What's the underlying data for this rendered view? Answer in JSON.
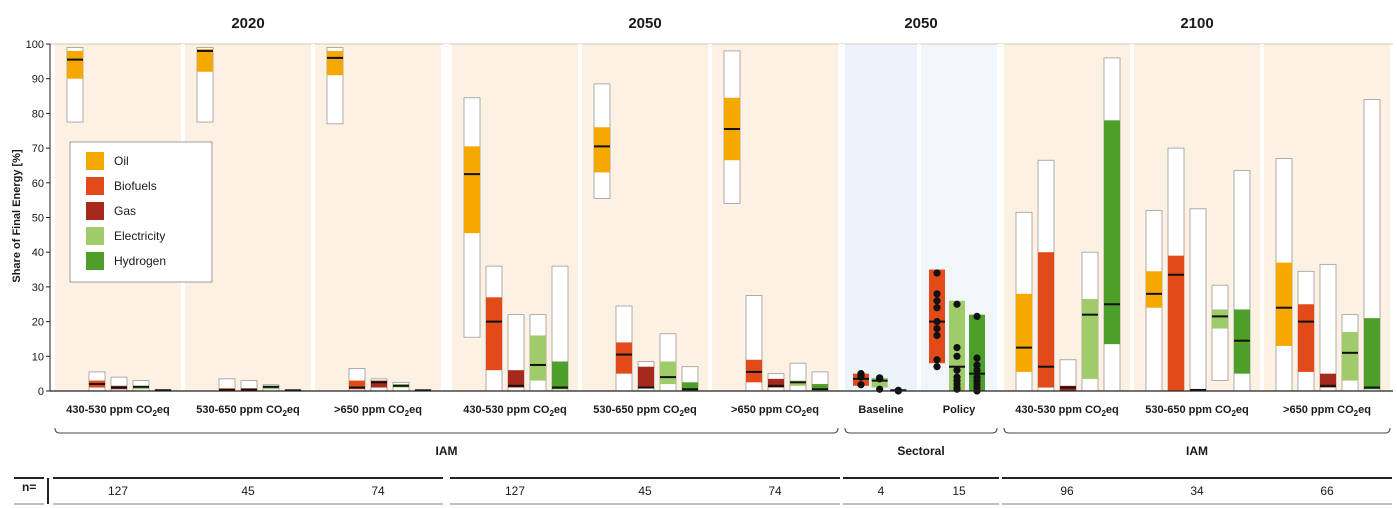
{
  "chart_data": {
    "type": "bar",
    "ylabel": "Share of Final Energy [%]",
    "ylim": [
      0,
      100
    ],
    "yticks": [
      0,
      10,
      20,
      30,
      40,
      50,
      60,
      70,
      80,
      90,
      100
    ],
    "grid": false,
    "legend": {
      "placement": "left",
      "entries": [
        {
          "name": "Oil",
          "color": "#f5a800"
        },
        {
          "name": "Biofuels",
          "color": "#e24a1a"
        },
        {
          "name": "Gas",
          "color": "#a52a1c"
        },
        {
          "name": "Electricity",
          "color": "#9fcb6b"
        },
        {
          "name": "Hydrogen",
          "color": "#4e9e2a"
        }
      ]
    },
    "year_labels": [
      "2020",
      "2050",
      "2050",
      "2100"
    ],
    "group_labels": [
      "IAM",
      "Sectoral",
      "IAM"
    ],
    "n_label": "n=",
    "panels": [
      {
        "label": "430-530 ppm CO2eq",
        "label_main": "430-530 ppm CO",
        "label_sub": "2",
        "label_tail": "eq",
        "n": "127",
        "bars": [
          {
            "carrier": "Oil",
            "min": 77.5,
            "q1": 90,
            "median": 95.5,
            "q3": 98,
            "max": 99
          },
          {
            "carrier": "Biofuels",
            "min": 0,
            "q1": 1,
            "median": 2,
            "q3": 3,
            "max": 5.5
          },
          {
            "carrier": "Gas",
            "min": 0,
            "q1": 0.5,
            "median": 1,
            "q3": 1.5,
            "max": 4
          },
          {
            "carrier": "Electricity",
            "min": 0,
            "q1": 0.5,
            "median": 1.2,
            "q3": 1.5,
            "max": 3
          },
          {
            "carrier": "Hydrogen",
            "min": 0,
            "q1": 0,
            "median": 0.2,
            "q3": 0.4,
            "max": 0.4
          }
        ]
      },
      {
        "label": "530-650 ppm CO2eq",
        "label_main": "530-650 ppm CO",
        "label_sub": "2",
        "label_tail": "eq",
        "n": "45",
        "bars": [
          {
            "carrier": "Oil",
            "min": 77.5,
            "q1": 92,
            "median": 98,
            "q3": 98.5,
            "max": 99
          },
          {
            "carrier": "Biofuels",
            "min": 0,
            "q1": 0,
            "median": 0.3,
            "q3": 0.8,
            "max": 3.5
          },
          {
            "carrier": "Gas",
            "min": 0,
            "q1": 0,
            "median": 0.3,
            "q3": 0.8,
            "max": 3
          },
          {
            "carrier": "Electricity",
            "min": 0,
            "q1": 0.5,
            "median": 1.2,
            "q3": 1.5,
            "max": 1.8
          },
          {
            "carrier": "Hydrogen",
            "min": 0,
            "q1": 0,
            "median": 0.2,
            "q3": 0.3,
            "max": 0.3
          }
        ]
      },
      {
        "label": ">650 ppm CO2eq",
        "label_main": ">650 ppm CO",
        "label_sub": "2",
        "label_tail": "eq",
        "n": "74",
        "bars": [
          {
            "carrier": "Oil",
            "min": 77,
            "q1": 91,
            "median": 96,
            "q3": 98,
            "max": 99
          },
          {
            "carrier": "Biofuels",
            "min": 0,
            "q1": 0.5,
            "median": 1,
            "q3": 3,
            "max": 6.5
          },
          {
            "carrier": "Gas",
            "min": 0,
            "q1": 1,
            "median": 2.5,
            "q3": 3,
            "max": 3.5
          },
          {
            "carrier": "Electricity",
            "min": 0,
            "q1": 1,
            "median": 1.5,
            "q3": 2,
            "max": 2.5
          },
          {
            "carrier": "Hydrogen",
            "min": 0,
            "q1": 0,
            "median": 0.2,
            "q3": 0.3,
            "max": 0.3
          }
        ]
      },
      {
        "label": "430-530 ppm CO2eq",
        "label_main": "430-530 ppm CO",
        "label_sub": "2",
        "label_tail": "eq",
        "n": "127",
        "bars": [
          {
            "carrier": "Oil",
            "min": 15.5,
            "q1": 45.5,
            "median": 62.5,
            "q3": 70.5,
            "max": 84.5
          },
          {
            "carrier": "Biofuels",
            "min": 0,
            "q1": 6,
            "median": 20,
            "q3": 27,
            "max": 36
          },
          {
            "carrier": "Gas",
            "min": 0,
            "q1": 1,
            "median": 1.5,
            "q3": 6,
            "max": 22
          },
          {
            "carrier": "Electricity",
            "min": 0,
            "q1": 3,
            "median": 7.5,
            "q3": 16,
            "max": 22
          },
          {
            "carrier": "Hydrogen",
            "min": 0,
            "q1": 0.5,
            "median": 1,
            "q3": 8.5,
            "max": 36
          }
        ]
      },
      {
        "label": "530-650 ppm CO2eq",
        "label_main": "530-650 ppm CO",
        "label_sub": "2",
        "label_tail": "eq",
        "n": "45",
        "bars": [
          {
            "carrier": "Oil",
            "min": 55.5,
            "q1": 63,
            "median": 70.5,
            "q3": 76,
            "max": 88.5
          },
          {
            "carrier": "Biofuels",
            "min": 0,
            "q1": 5,
            "median": 10.5,
            "q3": 14,
            "max": 24.5
          },
          {
            "carrier": "Gas",
            "min": 0,
            "q1": 1,
            "median": 1,
            "q3": 7,
            "max": 8.5
          },
          {
            "carrier": "Electricity",
            "min": 0,
            "q1": 2,
            "median": 4,
            "q3": 8.5,
            "max": 16.5
          },
          {
            "carrier": "Hydrogen",
            "min": 0,
            "q1": 0,
            "median": 0.5,
            "q3": 2.5,
            "max": 7
          }
        ]
      },
      {
        "label": ">650 ppm CO2eq",
        "label_main": ">650 ppm CO",
        "label_sub": "2",
        "label_tail": "eq",
        "n": "74",
        "bars": [
          {
            "carrier": "Oil",
            "min": 54,
            "q1": 66.5,
            "median": 75.5,
            "q3": 84.5,
            "max": 98
          },
          {
            "carrier": "Biofuels",
            "min": 0,
            "q1": 2.5,
            "median": 5.5,
            "q3": 9,
            "max": 27.5
          },
          {
            "carrier": "Gas",
            "min": 0,
            "q1": 1,
            "median": 1.5,
            "q3": 3.5,
            "max": 5
          },
          {
            "carrier": "Electricity",
            "min": 0,
            "q1": 1.5,
            "median": 2.5,
            "q3": 3,
            "max": 8
          },
          {
            "carrier": "Hydrogen",
            "min": 0,
            "q1": 0.5,
            "median": 0.5,
            "q3": 2,
            "max": 5.5
          }
        ]
      },
      {
        "label": "Baseline",
        "n": "4",
        "bars": [
          {
            "carrier": "Biofuels",
            "min": 1.5,
            "q1": 1.5,
            "median": 3.5,
            "q3": 5,
            "max": 5,
            "points": [
              5,
              4.5,
              4,
              1.8
            ]
          },
          {
            "carrier": "Electricity",
            "min": 1,
            "q1": 1,
            "median": 3,
            "q3": 3.8,
            "max": 3.8,
            "points": [
              3.8,
              3.5,
              0.5
            ]
          },
          {
            "carrier": "Hydrogen",
            "min": 0,
            "q1": 0,
            "median": 0.2,
            "q3": 0.4,
            "max": 0.4,
            "points": [
              0.2,
              0,
              0.1
            ]
          }
        ]
      },
      {
        "label": "Policy",
        "n": "15",
        "bars": [
          {
            "carrier": "Biofuels",
            "min": 8,
            "q1": 8,
            "median": 20,
            "q3": 35,
            "max": 35,
            "points": [
              34,
              28,
              26,
              24,
              20,
              18,
              16,
              9,
              7
            ]
          },
          {
            "carrier": "Electricity",
            "min": 0,
            "q1": 0,
            "median": 7,
            "q3": 26,
            "max": 26,
            "points": [
              25,
              12.5,
              10,
              6,
              4,
              3,
              2,
              1,
              0.5
            ]
          },
          {
            "carrier": "Hydrogen",
            "min": 0,
            "q1": 0,
            "median": 5,
            "q3": 22,
            "max": 22,
            "points": [
              21.5,
              9.5,
              7.5,
              6,
              4,
              3,
              2,
              1,
              0
            ]
          }
        ]
      },
      {
        "label": "430-530 ppm CO2eq",
        "label_main": "430-530 ppm CO",
        "label_sub": "2",
        "label_tail": "eq",
        "n": "96",
        "bars": [
          {
            "carrier": "Oil",
            "min": 0,
            "q1": 5.5,
            "median": 12.5,
            "q3": 28,
            "max": 51.5
          },
          {
            "carrier": "Biofuels",
            "min": 0,
            "q1": 1,
            "median": 7,
            "q3": 40,
            "max": 66.5
          },
          {
            "carrier": "Gas",
            "min": 0,
            "q1": 0,
            "median": 1,
            "q3": 1.5,
            "max": 9
          },
          {
            "carrier": "Electricity",
            "min": 0,
            "q1": 3.5,
            "median": 22,
            "q3": 26.5,
            "max": 40
          },
          {
            "carrier": "Hydrogen",
            "min": 0,
            "q1": 13.5,
            "median": 25,
            "q3": 78,
            "max": 96
          }
        ]
      },
      {
        "label": "530-650 ppm CO2eq",
        "label_main": "530-650 ppm CO",
        "label_sub": "2",
        "label_tail": "eq",
        "n": "34",
        "bars": [
          {
            "carrier": "Oil",
            "min": 0,
            "q1": 24,
            "median": 28,
            "q3": 34.5,
            "max": 52
          },
          {
            "carrier": "Biofuels",
            "min": 0,
            "q1": 0,
            "median": 33.5,
            "q3": 39,
            "max": 70
          },
          {
            "carrier": "Gas",
            "min": 0,
            "q1": 0,
            "median": 0.3,
            "q3": 0.5,
            "max": 52.5
          },
          {
            "carrier": "Electricity",
            "min": 3,
            "q1": 18,
            "median": 21.5,
            "q3": 23.5,
            "max": 30.5
          },
          {
            "carrier": "Hydrogen",
            "min": 0,
            "q1": 5,
            "median": 14.5,
            "q3": 23.5,
            "max": 63.5
          }
        ]
      },
      {
        "label": ">650 ppm CO2eq",
        "label_main": ">650 ppm CO",
        "label_sub": "2",
        "label_tail": "eq",
        "n": "66",
        "bars": [
          {
            "carrier": "Oil",
            "min": 0,
            "q1": 13,
            "median": 24,
            "q3": 37,
            "max": 67
          },
          {
            "carrier": "Biofuels",
            "min": 0,
            "q1": 5.5,
            "median": 20,
            "q3": 25,
            "max": 34.5
          },
          {
            "carrier": "Gas",
            "min": 0,
            "q1": 1,
            "median": 1.5,
            "q3": 5,
            "max": 36.5
          },
          {
            "carrier": "Electricity",
            "min": 0,
            "q1": 3,
            "median": 11,
            "q3": 17,
            "max": 22
          },
          {
            "carrier": "Hydrogen",
            "min": 0,
            "q1": 0.5,
            "median": 1,
            "q3": 21,
            "max": 84
          }
        ]
      }
    ]
  }
}
